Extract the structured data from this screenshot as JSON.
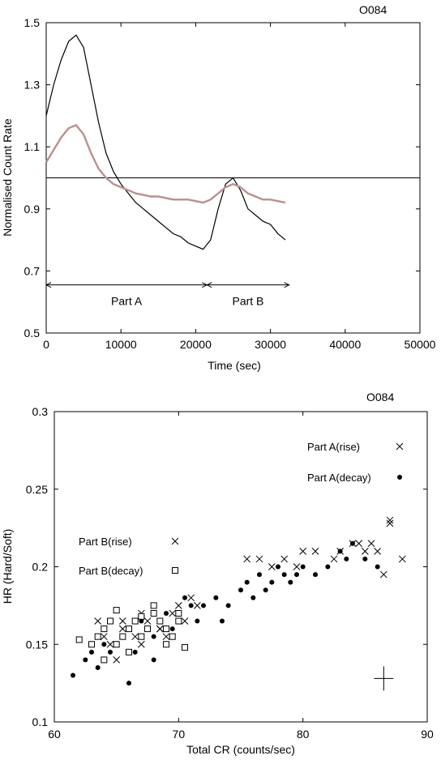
{
  "chart_data": [
    {
      "type": "line",
      "title": "O084",
      "xlabel": "Time (sec)",
      "ylabel": "Normalised Count Rate",
      "xlim": [
        0,
        50000
      ],
      "ylim": [
        0.5,
        1.5
      ],
      "x_ticks": [
        0,
        10000,
        20000,
        30000,
        40000,
        50000
      ],
      "y_ticks": [
        0.5,
        0.7,
        0.9,
        1.1,
        1.3,
        1.5
      ],
      "y_tick_labels": [
        "0.5",
        "0.7",
        "0.9",
        "1.1",
        "1.3",
        "1.5"
      ],
      "reference_line_y": 1.0,
      "series": [
        {
          "color": "#000000",
          "x": [
            0,
            1000,
            2000,
            3000,
            4000,
            5000,
            6000,
            7000,
            8000,
            9000,
            10000,
            11000,
            12000,
            13000,
            14000,
            15000,
            16000,
            17000,
            18000,
            19000,
            20000,
            21000,
            22000,
            23000,
            24000,
            25000,
            26000,
            27000,
            28000,
            29000,
            30000,
            31000,
            32000
          ],
          "y": [
            1.2,
            1.3,
            1.38,
            1.44,
            1.46,
            1.42,
            1.3,
            1.18,
            1.08,
            1.02,
            0.98,
            0.95,
            0.92,
            0.9,
            0.88,
            0.86,
            0.84,
            0.82,
            0.81,
            0.79,
            0.78,
            0.77,
            0.8,
            0.9,
            0.98,
            1.0,
            0.96,
            0.9,
            0.88,
            0.86,
            0.85,
            0.82,
            0.8
          ]
        },
        {
          "color": "#bc8f8f",
          "x": [
            0,
            1000,
            2000,
            3000,
            4000,
            5000,
            6000,
            7000,
            8000,
            9000,
            10000,
            11000,
            12000,
            13000,
            14000,
            15000,
            16000,
            17000,
            18000,
            19000,
            20000,
            21000,
            22000,
            23000,
            24000,
            25000,
            26000,
            27000,
            28000,
            29000,
            30000,
            31000,
            32000
          ],
          "y": [
            1.05,
            1.09,
            1.13,
            1.16,
            1.17,
            1.14,
            1.08,
            1.03,
            1.0,
            0.98,
            0.97,
            0.96,
            0.95,
            0.945,
            0.94,
            0.94,
            0.935,
            0.93,
            0.93,
            0.93,
            0.925,
            0.92,
            0.93,
            0.95,
            0.97,
            0.98,
            0.97,
            0.95,
            0.94,
            0.93,
            0.93,
            0.925,
            0.92
          ]
        }
      ],
      "annotations": [
        {
          "text": "Part A",
          "x_range": [
            0,
            21500
          ],
          "y": 0.655
        },
        {
          "text": "Part B",
          "x_range": [
            21500,
            32500
          ],
          "y": 0.655
        }
      ]
    },
    {
      "type": "scatter",
      "title": "O084",
      "xlabel": "Total CR (counts/sec)",
      "ylabel": "HR (Hard/Soft)",
      "xlim": [
        60,
        90
      ],
      "ylim": [
        0.1,
        0.3
      ],
      "x_ticks": [
        60,
        70,
        80,
        90
      ],
      "y_ticks": [
        0.1,
        0.15,
        0.2,
        0.25,
        0.3
      ],
      "y_tick_labels": [
        "0.1",
        "0.15",
        "0.2",
        "0.25",
        "0.3"
      ],
      "series": [
        {
          "name": "Part A(rise)",
          "marker": "cross",
          "x": [
            64.0,
            65.5,
            67.0,
            68.5,
            70.0,
            71.0,
            76.5,
            77.5,
            78.5,
            79.5,
            81.0,
            82.5,
            83.0,
            84.0,
            84.5,
            85.0,
            85.5,
            86.0,
            86.5,
            87.0,
            87.0,
            88.0,
            75.5,
            80.0
          ],
          "y": [
            0.155,
            0.165,
            0.17,
            0.16,
            0.175,
            0.18,
            0.205,
            0.2,
            0.205,
            0.2,
            0.21,
            0.205,
            0.21,
            0.215,
            0.215,
            0.21,
            0.215,
            0.21,
            0.195,
            0.23,
            0.228,
            0.205,
            0.205,
            0.21
          ]
        },
        {
          "name": "Part A(decay)",
          "marker": "dot",
          "x": [
            61.5,
            62.5,
            63.0,
            63.5,
            64.0,
            64.5,
            65.0,
            65.5,
            66.0,
            66.5,
            67.0,
            67.5,
            68.0,
            68.5,
            69.0,
            69.5,
            70.0,
            70.5,
            71.0,
            71.5,
            72.0,
            73.0,
            74.0,
            75.0,
            75.5,
            76.0,
            76.5,
            77.0,
            77.5,
            78.0,
            78.5,
            79.0,
            79.5,
            80.0,
            81.0,
            82.0,
            83.0,
            83.5,
            84.0,
            85.0,
            86.0,
            66.0,
            68.0,
            73.5
          ],
          "y": [
            0.13,
            0.14,
            0.145,
            0.135,
            0.15,
            0.145,
            0.15,
            0.155,
            0.16,
            0.145,
            0.165,
            0.16,
            0.155,
            0.165,
            0.17,
            0.16,
            0.17,
            0.18,
            0.175,
            0.165,
            0.175,
            0.18,
            0.175,
            0.185,
            0.19,
            0.18,
            0.195,
            0.185,
            0.19,
            0.2,
            0.195,
            0.19,
            0.195,
            0.2,
            0.195,
            0.2,
            0.21,
            0.205,
            0.215,
            0.205,
            0.2,
            0.125,
            0.14,
            0.165
          ]
        },
        {
          "name": "Part B(rise)",
          "marker": "cross",
          "x": [
            63.5,
            64.5,
            65.5,
            66.5,
            67.5,
            68.5,
            69.5,
            70.5,
            65.0,
            67.0,
            69.0,
            71.5
          ],
          "y": [
            0.165,
            0.15,
            0.16,
            0.155,
            0.165,
            0.16,
            0.17,
            0.165,
            0.14,
            0.15,
            0.155,
            0.175
          ]
        },
        {
          "name": "Part B(decay)",
          "marker": "square",
          "x": [
            62.0,
            63.0,
            63.5,
            64.0,
            64.5,
            65.0,
            65.5,
            66.0,
            66.5,
            67.0,
            67.5,
            68.0,
            68.5,
            69.0,
            69.5,
            70.0,
            70.5,
            64.0,
            66.0,
            68.0,
            70.0,
            65.0,
            67.0,
            69.0
          ],
          "y": [
            0.153,
            0.15,
            0.155,
            0.16,
            0.165,
            0.15,
            0.155,
            0.16,
            0.165,
            0.155,
            0.16,
            0.17,
            0.165,
            0.16,
            0.155,
            0.165,
            0.148,
            0.14,
            0.145,
            0.175,
            0.17,
            0.172,
            0.168,
            0.15
          ]
        }
      ],
      "error_bar_example": {
        "x": 86.5,
        "y": 0.128
      }
    }
  ]
}
